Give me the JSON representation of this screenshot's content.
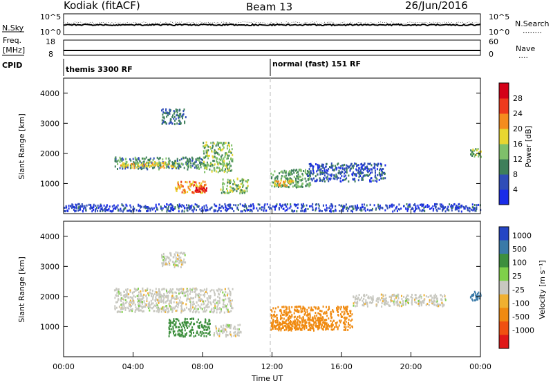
{
  "header": {
    "title": "Kodiak (fitACF)",
    "beam": "Beam 13",
    "date": "26/Jun/2016"
  },
  "nsky_panel": {
    "left_label": "N.Sky",
    "left_ticks": [
      "10^5",
      "10^0"
    ],
    "right_label": "N.Search",
    "right_ticks": [
      "10^5",
      "10^0"
    ],
    "right_legend_dots": "........"
  },
  "freq_panel": {
    "left_label_1": "Freq.",
    "left_label_2": "[MHz]",
    "left_ticks": [
      "18",
      "8"
    ],
    "right_label": "Nave",
    "right_ticks": [
      "60",
      "0"
    ],
    "right_legend_dots": "...."
  },
  "cpid_panel": {
    "label": "CPID",
    "programs": [
      {
        "text": "themis 3300 RF",
        "start_hour": 0
      },
      {
        "text": "normal (fast) 151 RF",
        "start_hour": 12
      }
    ]
  },
  "x_axis": {
    "label": "Time UT",
    "ticks": [
      "00:00",
      "04:00",
      "08:00",
      "12:00",
      "16:00",
      "20:00",
      "00:00"
    ]
  },
  "power_panel": {
    "ylabel": "Slant Range [km]",
    "yticks": [
      "1000",
      "2000",
      "3000",
      "4000"
    ],
    "colorbar_title": "Power [dB]",
    "colorbar_ticks": [
      "4",
      "8",
      "12",
      "16",
      "20",
      "24",
      "28"
    ],
    "colorbar_colors": [
      "#1a2ce8",
      "#2f4db8",
      "#3e7f5a",
      "#7fc06a",
      "#e8d630",
      "#f58c1e",
      "#ee3a1c",
      "#d40018"
    ]
  },
  "velocity_panel": {
    "ylabel": "Slant Range [km]",
    "yticks": [
      "1000",
      "2000",
      "3000",
      "4000"
    ],
    "colorbar_title": "Velocity [m s⁻¹]",
    "colorbar_ticks": [
      "1000",
      "500",
      "100",
      "25",
      "-25",
      "-100",
      "-500",
      "-1000"
    ],
    "colorbar_colors": [
      "#2545c4",
      "#3a7aa8",
      "#3d8f3d",
      "#7fd04a",
      "#c8c8c0",
      "#f0b030",
      "#f08a10",
      "#f05010",
      "#e01818"
    ]
  },
  "chart_data": {
    "type": "heatmap",
    "title": "Kodiak (fitACF)  Beam 13  26/Jun/2016",
    "xlabel": "Time UT",
    "ylabel": "Slant Range [km]",
    "xlim_hours": [
      0,
      24
    ],
    "ylim_km": [
      0,
      4500
    ],
    "grid": false,
    "panels": [
      {
        "name": "Power [dB]",
        "zlim": [
          0,
          30
        ],
        "echo_regions": [
          {
            "t0": 2.9,
            "t1": 8.2,
            "r0": 1500,
            "r1": 1900,
            "v": 10
          },
          {
            "t0": 3.2,
            "t1": 6.5,
            "r0": 1550,
            "r1": 1750,
            "v": 18
          },
          {
            "t0": 6.4,
            "t1": 8.2,
            "r0": 700,
            "r1": 1100,
            "v": 22
          },
          {
            "t0": 7.5,
            "t1": 8.2,
            "r0": 750,
            "r1": 900,
            "v": 28
          },
          {
            "t0": 8.0,
            "t1": 9.7,
            "r0": 1400,
            "r1": 2400,
            "v": 14
          },
          {
            "t0": 5.6,
            "t1": 7.0,
            "r0": 3000,
            "r1": 3500,
            "v": 8
          },
          {
            "t0": 9.0,
            "t1": 10.6,
            "r0": 700,
            "r1": 1200,
            "v": 14
          },
          {
            "t0": 11.9,
            "t1": 14.2,
            "r0": 900,
            "r1": 1500,
            "v": 12
          },
          {
            "t0": 12.1,
            "t1": 13.2,
            "r0": 950,
            "r1": 1150,
            "v": 20
          },
          {
            "t0": 14.0,
            "t1": 18.5,
            "r0": 1100,
            "r1": 1700,
            "v": 6
          },
          {
            "t0": 23.4,
            "t1": 24.0,
            "r0": 1900,
            "r1": 2200,
            "v": 13
          },
          {
            "t0": 0.0,
            "t1": 24.0,
            "r0": 100,
            "r1": 350,
            "v": 5
          }
        ]
      },
      {
        "name": "Velocity [m s^-1]",
        "zlim": [
          -1000,
          1000
        ],
        "echo_regions": [
          {
            "t0": 2.9,
            "t1": 9.7,
            "r0": 1500,
            "r1": 2300,
            "v": 0
          },
          {
            "t0": 6.0,
            "t1": 8.4,
            "r0": 700,
            "r1": 1300,
            "v": 150
          },
          {
            "t0": 5.6,
            "t1": 7.0,
            "r0": 3000,
            "r1": 3500,
            "v": 0
          },
          {
            "t0": 8.6,
            "t1": 10.2,
            "r0": 700,
            "r1": 1100,
            "v": 0
          },
          {
            "t0": 11.9,
            "t1": 16.6,
            "r0": 900,
            "r1": 1700,
            "v": -300
          },
          {
            "t0": 12.0,
            "t1": 15.2,
            "r0": 950,
            "r1": 1200,
            "v": -400
          },
          {
            "t0": 16.6,
            "t1": 22.0,
            "r0": 1700,
            "r1": 2100,
            "v": 0
          },
          {
            "t0": 23.4,
            "t1": 24.0,
            "r0": 1900,
            "r1": 2200,
            "v": 600
          }
        ]
      }
    ]
  }
}
